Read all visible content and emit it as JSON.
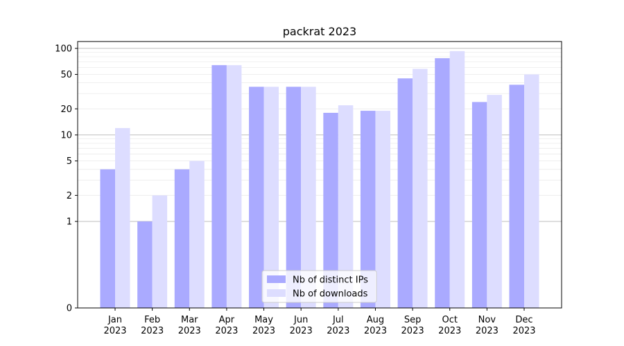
{
  "chart_data": {
    "type": "bar",
    "title": "packrat 2023",
    "xlabel": "",
    "ylabel": "",
    "categories": [
      [
        "Jan",
        "2023"
      ],
      [
        "Feb",
        "2023"
      ],
      [
        "Mar",
        "2023"
      ],
      [
        "Apr",
        "2023"
      ],
      [
        "May",
        "2023"
      ],
      [
        "Jun",
        "2023"
      ],
      [
        "Jul",
        "2023"
      ],
      [
        "Aug",
        "2023"
      ],
      [
        "Sep",
        "2023"
      ],
      [
        "Oct",
        "2023"
      ],
      [
        "Nov",
        "2023"
      ],
      [
        "Dec",
        "2023"
      ]
    ],
    "series": [
      {
        "name": "Nb of distinct IPs",
        "color": "#aaaaff",
        "values": [
          4,
          1,
          4,
          64,
          36,
          36,
          18,
          19,
          45,
          77,
          24,
          38
        ]
      },
      {
        "name": "Nb of downloads",
        "color": "#ddddff",
        "values": [
          12,
          2,
          5,
          64,
          36,
          36,
          22,
          19,
          58,
          93,
          29,
          50
        ]
      }
    ],
    "y_scale": "symlog",
    "ylim": [
      0,
      120
    ],
    "yticks": [
      0,
      1,
      2,
      5,
      10,
      20,
      50,
      100
    ],
    "ytick_labels": [
      "0",
      "1",
      "2",
      "5",
      "10",
      "20",
      "50",
      "100"
    ],
    "grid": true,
    "legend_position": "bottom-center"
  }
}
